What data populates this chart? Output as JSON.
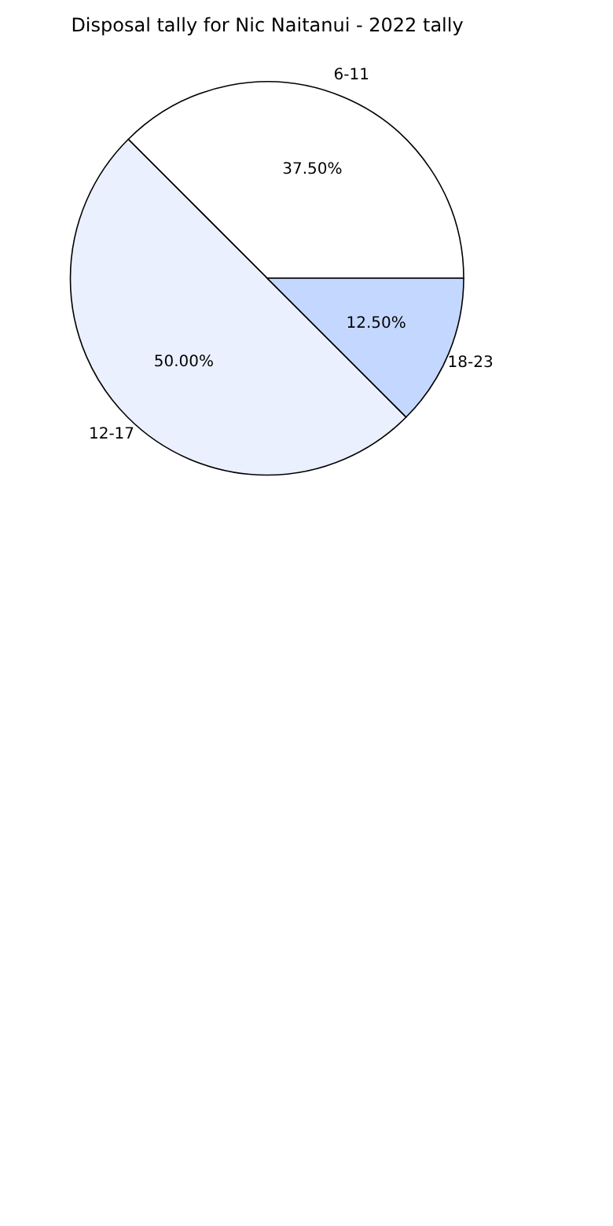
{
  "chart_data": {
    "type": "pie",
    "title": "Disposal tally for Nic Naitanui - 2022 tally",
    "categories": [
      "6-11",
      "12-17",
      "18-23"
    ],
    "values": [
      37.5,
      50,
      12.5
    ],
    "colors": [
      "#ffffff",
      "#eaf0fd",
      "#c4d7ff"
    ],
    "value_labels": [
      "37.50%",
      "50.00%",
      "12.50%"
    ]
  }
}
